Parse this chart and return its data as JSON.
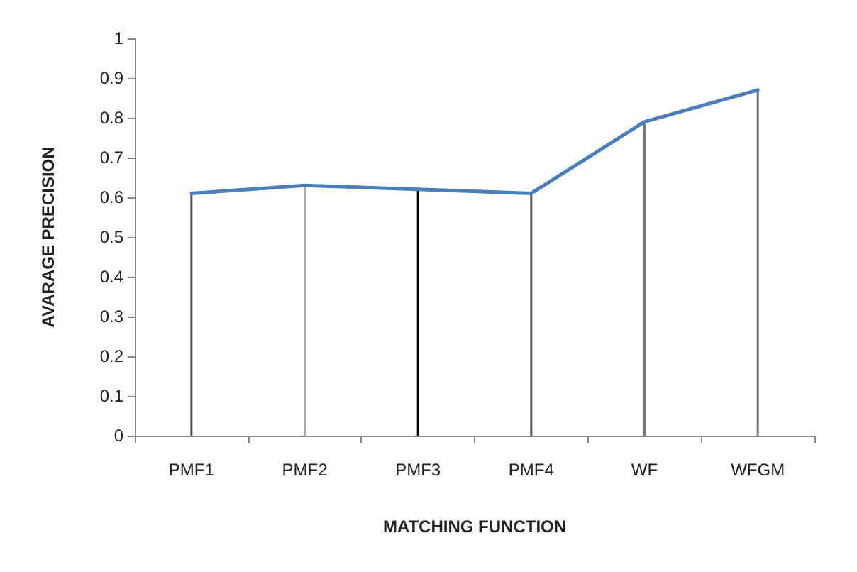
{
  "chart_data": {
    "type": "line",
    "xlabel": "MATCHING FUNCTION",
    "ylabel": "AVARAGE PRECISION",
    "categories": [
      "PMF1",
      "PMF2",
      "PMF3",
      "PMF4",
      "WF",
      "WFGM"
    ],
    "series": [
      {
        "type": "bar",
        "colors": [
          "#555555",
          "#aaaaaa",
          "#000000",
          "#555555",
          "#777777",
          "#777777"
        ],
        "values": [
          0.61,
          0.63,
          0.62,
          0.61,
          0.79,
          0.87
        ]
      },
      {
        "color": "#4a7ebb",
        "values": [
          0.61,
          0.63,
          0.62,
          0.61,
          0.79,
          0.87
        ]
      }
    ],
    "ylim": [
      0,
      1
    ],
    "yticks": [
      0,
      0.1,
      0.2,
      0.3,
      0.4,
      0.5,
      0.6,
      0.7,
      0.8,
      0.9,
      1
    ],
    "grid": false,
    "marker": "none",
    "line_style": "solid"
  }
}
